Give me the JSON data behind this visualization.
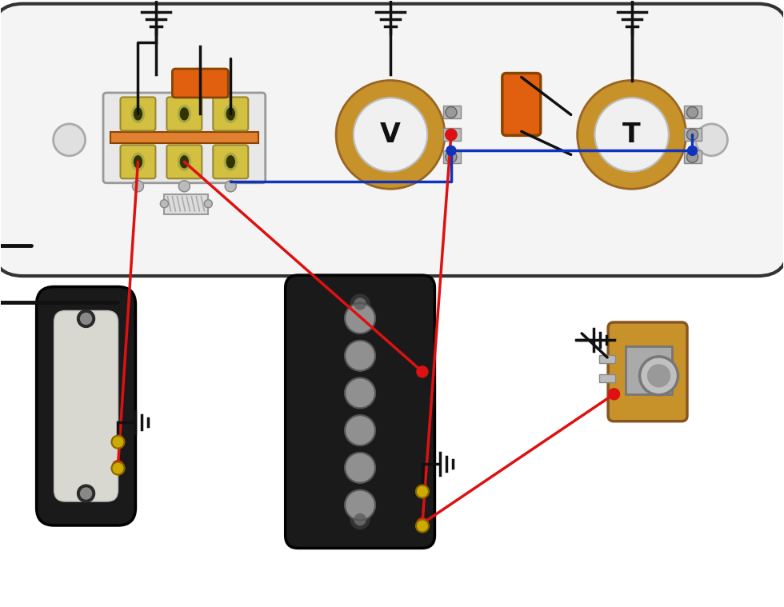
{
  "bg": "#ffffff",
  "plate_fill": "#f4f4f4",
  "plate_edge": "#333333",
  "pot_body": "#c8922a",
  "pot_inner": "#f0f0f0",
  "cap_orange": "#e06010",
  "switch_gold": "#d4c040",
  "switch_bg": "#e8e8e8",
  "switch_rail": "#e08030",
  "wire_red": "#dd1111",
  "wire_blue": "#1133bb",
  "wire_black": "#111111",
  "wire_yellow": "#ccaa00",
  "pickup_body": "#1a1a1a",
  "pickup_inner": "#d0d0d0",
  "pickup_pole": "#909090",
  "jack_body": "#c8922a",
  "jack_metal": "#aaaaaa",
  "lug_color": "#aaaaaa",
  "screw_color": "#888888"
}
